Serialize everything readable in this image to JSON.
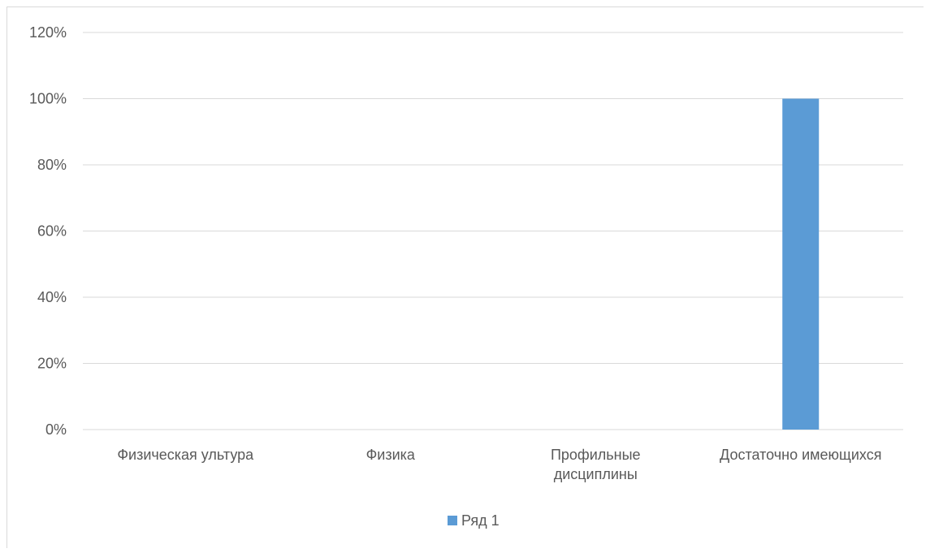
{
  "chart_data": {
    "type": "bar",
    "categories": [
      [
        "Физическая ультура"
      ],
      [
        "Физика"
      ],
      [
        "Профильные",
        "дисциплины"
      ],
      [
        "Достаточно имеющихся"
      ]
    ],
    "series": [
      {
        "name": "Ряд 1",
        "values": [
          0,
          0,
          0,
          100
        ],
        "color": "#5b9bd5"
      }
    ],
    "ylim": [
      0,
      120
    ],
    "yticks": [
      0,
      20,
      40,
      60,
      80,
      100,
      120
    ],
    "ytick_suffix": "%",
    "grid": true,
    "legend_position": "bottom",
    "title": "",
    "xlabel": "",
    "ylabel": ""
  },
  "colors": {
    "gridline": "#d9d9d9",
    "axis_text": "#595959"
  }
}
